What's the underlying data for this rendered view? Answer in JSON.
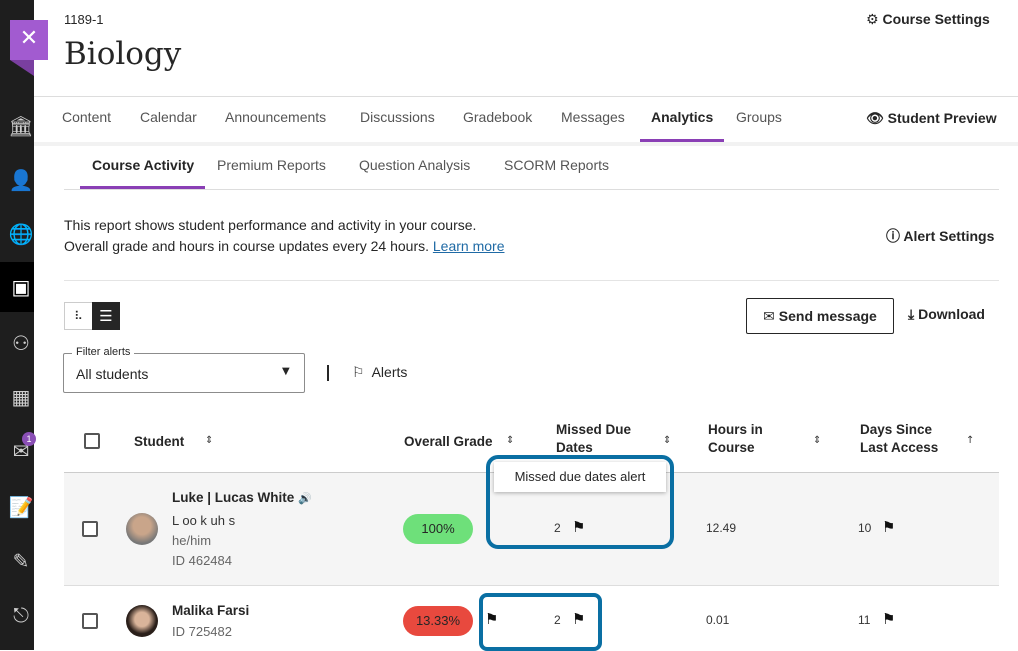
{
  "course": {
    "id": "1189-1",
    "title": "Biology",
    "settings_label": "Course Settings"
  },
  "nav": {
    "tabs": [
      {
        "label": "Content"
      },
      {
        "label": "Calendar"
      },
      {
        "label": "Announcements"
      },
      {
        "label": "Discussions"
      },
      {
        "label": "Gradebook"
      },
      {
        "label": "Messages"
      },
      {
        "label": "Analytics"
      },
      {
        "label": "Groups"
      }
    ],
    "student_preview": "Student Preview",
    "active": "Analytics"
  },
  "subnav": {
    "tabs": [
      {
        "label": "Course Activity"
      },
      {
        "label": "Premium Reports"
      },
      {
        "label": "Question Analysis"
      },
      {
        "label": "SCORM Reports"
      }
    ],
    "active": "Course Activity"
  },
  "description": {
    "line1": "This report shows student performance and activity in your course.",
    "line2": "Overall grade and hours in course updates every 24 hours.",
    "link": "Learn more"
  },
  "alert_settings": "Alert Settings",
  "toolbar": {
    "send_message": "Send message",
    "download": "Download"
  },
  "filter": {
    "label": "Filter alerts",
    "value": "All students",
    "alerts_label": "Alerts"
  },
  "sidebar": {
    "message_badge": "1"
  },
  "table": {
    "headers": {
      "student": "Student",
      "grade": "Overall Grade",
      "missed": "Missed Due Dates",
      "hours": "Hours in Course",
      "days": "Days Since Last Access"
    },
    "rows": [
      {
        "name": "Luke | Lucas White",
        "pronunciation": "L oo k uh s",
        "pronouns": "he/him",
        "id": "ID 462484",
        "grade": "100%",
        "missed": "2",
        "hours": "12.49",
        "days": "10"
      },
      {
        "name": "Malika Farsi",
        "id": "ID 725482",
        "grade": "13.33%",
        "missed": "2",
        "hours": "0.01",
        "days": "11"
      }
    ]
  },
  "tooltip": "Missed due dates alert",
  "colors": {
    "accent": "#8a3fb5",
    "grade_good": "#6ee07a",
    "grade_bad": "#e8493e",
    "highlight": "#0a6fa3"
  }
}
